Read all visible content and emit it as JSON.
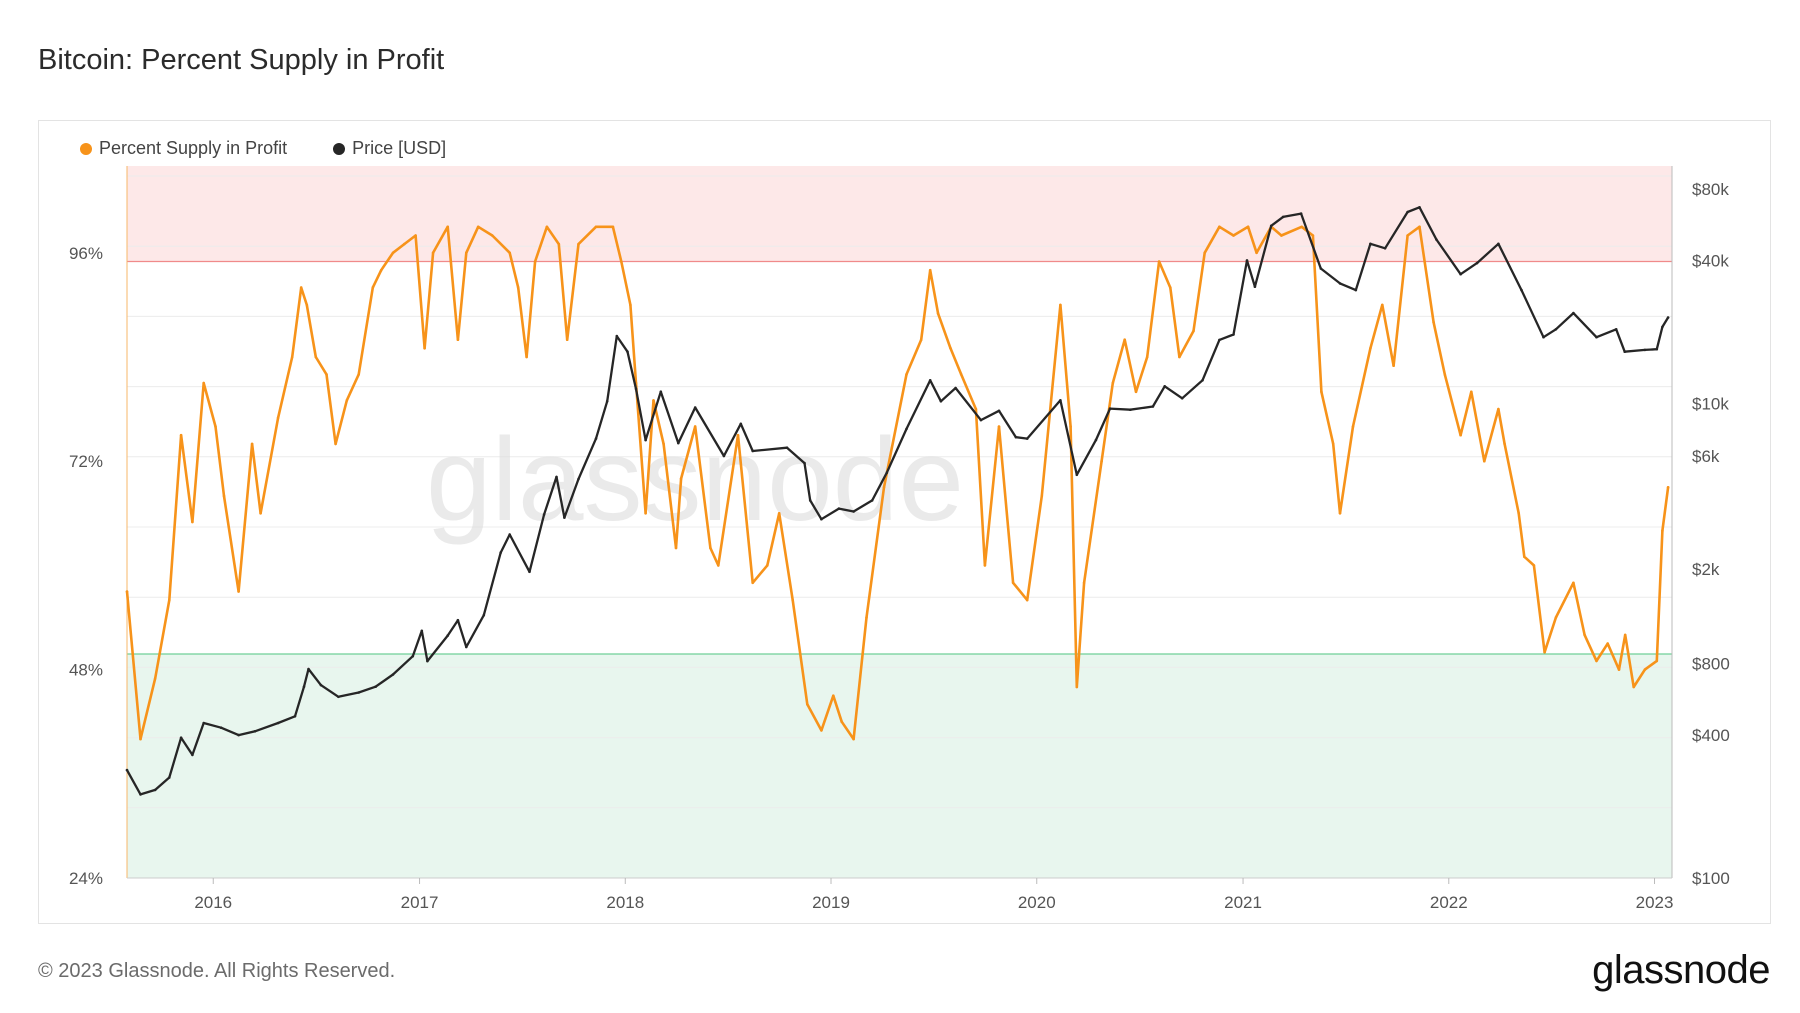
{
  "header": {
    "title": "Bitcoin: Percent Supply in Profit"
  },
  "footer": {
    "copyright": "© 2023 Glassnode. All Rights Reserved.",
    "brand": "glassnode"
  },
  "watermark": "glassnode",
  "colors": {
    "profit": "#f7931a",
    "price": "#262626",
    "upper_band": "#fde8e8",
    "lower_band": "#e8f6ee",
    "upper_line": "#f08a8a",
    "lower_line": "#6fcf97"
  },
  "chart_data": {
    "type": "line",
    "title": "Bitcoin: Percent Supply in Profit",
    "legend": {
      "placement": "top-left",
      "entries": [
        "Percent Supply in Profit",
        "Price [USD]"
      ]
    },
    "x_ticks": [
      "2016",
      "2017",
      "2018",
      "2019",
      "2020",
      "2021",
      "2022",
      "2023"
    ],
    "y_left": {
      "ticks": [
        "24%",
        "48%",
        "72%",
        "96%"
      ],
      "range": [
        24,
        106
      ],
      "scale": "linear"
    },
    "y_right": {
      "ticks": [
        "$100",
        "$400",
        "$800",
        "$2k",
        "$6k",
        "$10k",
        "$40k",
        "$80k"
      ],
      "range": [
        100,
        100000
      ],
      "scale": "log"
    },
    "bands": [
      {
        "name": "upper",
        "from": 95,
        "to": 106
      },
      {
        "name": "lower",
        "from": 24,
        "to": 49.8
      }
    ],
    "series": [
      {
        "name": "Percent Supply in Profit",
        "axis": "left",
        "points": [
          [
            "2015-08-01",
            57
          ],
          [
            "2015-08-25",
            40
          ],
          [
            "2015-09-20",
            47
          ],
          [
            "2015-10-15",
            56
          ],
          [
            "2015-11-05",
            75
          ],
          [
            "2015-11-25",
            65
          ],
          [
            "2015-12-15",
            81
          ],
          [
            "2016-01-05",
            76
          ],
          [
            "2016-01-20",
            68
          ],
          [
            "2016-02-15",
            57
          ],
          [
            "2016-03-10",
            74
          ],
          [
            "2016-03-25",
            66
          ],
          [
            "2016-04-25",
            77
          ],
          [
            "2016-05-20",
            84
          ],
          [
            "2016-06-05",
            92
          ],
          [
            "2016-06-15",
            90
          ],
          [
            "2016-07-01",
            84
          ],
          [
            "2016-07-20",
            82
          ],
          [
            "2016-08-05",
            74
          ],
          [
            "2016-08-25",
            79
          ],
          [
            "2016-09-15",
            82
          ],
          [
            "2016-10-10",
            92
          ],
          [
            "2016-10-25",
            94
          ],
          [
            "2016-11-15",
            96
          ],
          [
            "2016-12-05",
            97
          ],
          [
            "2016-12-25",
            98
          ],
          [
            "2017-01-10",
            85
          ],
          [
            "2017-01-25",
            96
          ],
          [
            "2017-02-20",
            99
          ],
          [
            "2017-03-10",
            86
          ],
          [
            "2017-03-25",
            96
          ],
          [
            "2017-04-15",
            99
          ],
          [
            "2017-05-10",
            98
          ],
          [
            "2017-06-10",
            96
          ],
          [
            "2017-06-25",
            92
          ],
          [
            "2017-07-10",
            84
          ],
          [
            "2017-07-25",
            95
          ],
          [
            "2017-08-15",
            99
          ],
          [
            "2017-09-05",
            97
          ],
          [
            "2017-09-20",
            86
          ],
          [
            "2017-10-10",
            97
          ],
          [
            "2017-11-10",
            99
          ],
          [
            "2017-12-10",
            99
          ],
          [
            "2017-12-25",
            95
          ],
          [
            "2018-01-10",
            90
          ],
          [
            "2018-01-20",
            81
          ],
          [
            "2018-02-06",
            66
          ],
          [
            "2018-02-20",
            79
          ],
          [
            "2018-03-10",
            74
          ],
          [
            "2018-04-01",
            62
          ],
          [
            "2018-04-10",
            70
          ],
          [
            "2018-05-05",
            76
          ],
          [
            "2018-06-01",
            62
          ],
          [
            "2018-06-15",
            60
          ],
          [
            "2018-07-20",
            75
          ],
          [
            "2018-08-15",
            58
          ],
          [
            "2018-09-10",
            60
          ],
          [
            "2018-10-01",
            66
          ],
          [
            "2018-10-25",
            56
          ],
          [
            "2018-11-20",
            44
          ],
          [
            "2018-12-15",
            41
          ],
          [
            "2019-01-05",
            45
          ],
          [
            "2019-01-20",
            42
          ],
          [
            "2019-02-10",
            40
          ],
          [
            "2019-03-05",
            54
          ],
          [
            "2019-04-05",
            69
          ],
          [
            "2019-05-15",
            82
          ],
          [
            "2019-06-10",
            86
          ],
          [
            "2019-06-26",
            94
          ],
          [
            "2019-07-10",
            89
          ],
          [
            "2019-08-01",
            85
          ],
          [
            "2019-08-20",
            82
          ],
          [
            "2019-09-15",
            78
          ],
          [
            "2019-10-01",
            60
          ],
          [
            "2019-10-26",
            76
          ],
          [
            "2019-11-20",
            58
          ],
          [
            "2019-12-15",
            56
          ],
          [
            "2020-01-10",
            68
          ],
          [
            "2020-02-12",
            90
          ],
          [
            "2020-03-01",
            76
          ],
          [
            "2020-03-12",
            46
          ],
          [
            "2020-03-25",
            58
          ],
          [
            "2020-04-25",
            72
          ],
          [
            "2020-05-15",
            81
          ],
          [
            "2020-06-05",
            86
          ],
          [
            "2020-06-25",
            80
          ],
          [
            "2020-07-15",
            84
          ],
          [
            "2020-08-05",
            95
          ],
          [
            "2020-08-25",
            92
          ],
          [
            "2020-09-10",
            84
          ],
          [
            "2020-10-05",
            87
          ],
          [
            "2020-10-25",
            96
          ],
          [
            "2020-11-20",
            99
          ],
          [
            "2020-12-15",
            98
          ],
          [
            "2021-01-10",
            99
          ],
          [
            "2021-01-25",
            96
          ],
          [
            "2021-02-20",
            99
          ],
          [
            "2021-03-10",
            98
          ],
          [
            "2021-04-15",
            99
          ],
          [
            "2021-05-05",
            98
          ],
          [
            "2021-05-20",
            80
          ],
          [
            "2021-06-10",
            74
          ],
          [
            "2021-06-22",
            66
          ],
          [
            "2021-07-15",
            76
          ],
          [
            "2021-08-15",
            85
          ],
          [
            "2021-09-05",
            90
          ],
          [
            "2021-09-25",
            83
          ],
          [
            "2021-10-20",
            98
          ],
          [
            "2021-11-10",
            99
          ],
          [
            "2021-12-05",
            88
          ],
          [
            "2021-12-25",
            82
          ],
          [
            "2022-01-22",
            75
          ],
          [
            "2022-02-10",
            80
          ],
          [
            "2022-03-05",
            72
          ],
          [
            "2022-03-30",
            78
          ],
          [
            "2022-04-10",
            74
          ],
          [
            "2022-05-05",
            66
          ],
          [
            "2022-05-15",
            61
          ],
          [
            "2022-06-01",
            60
          ],
          [
            "2022-06-20",
            50
          ],
          [
            "2022-07-10",
            54
          ],
          [
            "2022-08-10",
            58
          ],
          [
            "2022-08-30",
            52
          ],
          [
            "2022-09-20",
            49
          ],
          [
            "2022-10-10",
            51
          ],
          [
            "2022-10-30",
            48
          ],
          [
            "2022-11-10",
            52
          ],
          [
            "2022-11-25",
            46
          ],
          [
            "2022-12-15",
            48
          ],
          [
            "2023-01-05",
            49
          ],
          [
            "2023-01-15",
            64
          ],
          [
            "2023-01-25",
            69
          ]
        ]
      },
      {
        "name": "Price [USD]",
        "axis": "right",
        "points": [
          [
            "2015-08-01",
            285
          ],
          [
            "2015-08-25",
            225
          ],
          [
            "2015-09-20",
            235
          ],
          [
            "2015-10-15",
            265
          ],
          [
            "2015-11-05",
            390
          ],
          [
            "2015-11-25",
            330
          ],
          [
            "2015-12-15",
            450
          ],
          [
            "2016-01-15",
            430
          ],
          [
            "2016-02-15",
            400
          ],
          [
            "2016-03-15",
            415
          ],
          [
            "2016-04-25",
            450
          ],
          [
            "2016-05-25",
            480
          ],
          [
            "2016-06-10",
            640
          ],
          [
            "2016-06-18",
            760
          ],
          [
            "2016-07-10",
            650
          ],
          [
            "2016-08-10",
            580
          ],
          [
            "2016-09-15",
            605
          ],
          [
            "2016-10-15",
            640
          ],
          [
            "2016-11-15",
            720
          ],
          [
            "2016-12-20",
            860
          ],
          [
            "2017-01-05",
            1100
          ],
          [
            "2017-01-15",
            820
          ],
          [
            "2017-02-20",
            1050
          ],
          [
            "2017-03-10",
            1220
          ],
          [
            "2017-03-25",
            940
          ],
          [
            "2017-04-25",
            1280
          ],
          [
            "2017-05-25",
            2350
          ],
          [
            "2017-06-10",
            2800
          ],
          [
            "2017-07-15",
            1950
          ],
          [
            "2017-08-10",
            3400
          ],
          [
            "2017-09-01",
            4900
          ],
          [
            "2017-09-15",
            3300
          ],
          [
            "2017-10-10",
            4800
          ],
          [
            "2017-11-10",
            7100
          ],
          [
            "2017-11-30",
            10200
          ],
          [
            "2017-12-17",
            19200
          ],
          [
            "2018-01-05",
            16500
          ],
          [
            "2018-01-20",
            11500
          ],
          [
            "2018-02-06",
            7000
          ],
          [
            "2018-03-05",
            11200
          ],
          [
            "2018-04-05",
            6800
          ],
          [
            "2018-05-05",
            9600
          ],
          [
            "2018-06-25",
            6000
          ],
          [
            "2018-07-25",
            8200
          ],
          [
            "2018-08-15",
            6300
          ],
          [
            "2018-10-15",
            6500
          ],
          [
            "2018-11-15",
            5600
          ],
          [
            "2018-11-25",
            3900
          ],
          [
            "2018-12-15",
            3250
          ],
          [
            "2019-01-15",
            3600
          ],
          [
            "2019-02-10",
            3500
          ],
          [
            "2019-03-15",
            3900
          ],
          [
            "2019-04-10",
            5100
          ],
          [
            "2019-05-15",
            7800
          ],
          [
            "2019-06-26",
            12500
          ],
          [
            "2019-07-15",
            10200
          ],
          [
            "2019-08-10",
            11600
          ],
          [
            "2019-09-24",
            8500
          ],
          [
            "2019-10-26",
            9300
          ],
          [
            "2019-11-25",
            7200
          ],
          [
            "2019-12-15",
            7100
          ],
          [
            "2020-02-12",
            10300
          ],
          [
            "2020-03-12",
            5000
          ],
          [
            "2020-04-15",
            7000
          ],
          [
            "2020-05-10",
            9500
          ],
          [
            "2020-06-15",
            9400
          ],
          [
            "2020-07-25",
            9700
          ],
          [
            "2020-08-15",
            11800
          ],
          [
            "2020-09-15",
            10500
          ],
          [
            "2020-10-21",
            12500
          ],
          [
            "2020-11-20",
            18500
          ],
          [
            "2020-12-15",
            19500
          ],
          [
            "2021-01-08",
            40000
          ],
          [
            "2021-01-22",
            31000
          ],
          [
            "2021-02-20",
            56000
          ],
          [
            "2021-03-13",
            61000
          ],
          [
            "2021-04-14",
            63000
          ],
          [
            "2021-05-19",
            37000
          ],
          [
            "2021-06-22",
            32000
          ],
          [
            "2021-07-20",
            30000
          ],
          [
            "2021-08-15",
            47000
          ],
          [
            "2021-09-10",
            45000
          ],
          [
            "2021-10-20",
            64000
          ],
          [
            "2021-11-10",
            67000
          ],
          [
            "2021-12-10",
            49000
          ],
          [
            "2022-01-22",
            35000
          ],
          [
            "2022-02-20",
            39000
          ],
          [
            "2022-03-30",
            47000
          ],
          [
            "2022-05-10",
            30000
          ],
          [
            "2022-06-18",
            19000
          ],
          [
            "2022-07-10",
            20500
          ],
          [
            "2022-08-10",
            24000
          ],
          [
            "2022-09-20",
            19000
          ],
          [
            "2022-10-25",
            20500
          ],
          [
            "2022-11-09",
            16500
          ],
          [
            "2022-12-15",
            16800
          ],
          [
            "2023-01-05",
            16900
          ],
          [
            "2023-01-15",
            21000
          ],
          [
            "2023-01-25",
            23000
          ]
        ]
      }
    ]
  }
}
